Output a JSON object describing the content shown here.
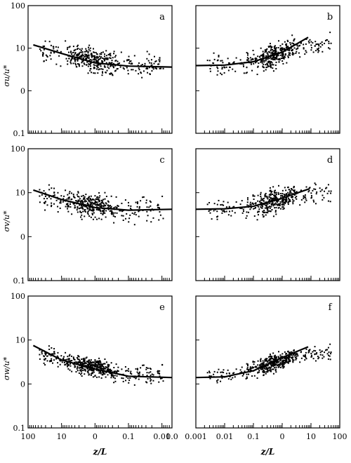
{
  "chart_data": [
    {
      "panel": "a",
      "type": "scatter",
      "ylabel": "σu/u*",
      "xlabel": "",
      "x_axis": "decreasing-log",
      "xlim": [
        100,
        0.005
      ],
      "ylim_display": [
        "100",
        "10",
        "0",
        "0.1"
      ],
      "fit_line": [
        [
          70,
          12
        ],
        [
          10,
          7.5
        ],
        [
          1,
          4.5
        ],
        [
          0.1,
          3.8
        ],
        [
          0.005,
          3.6
        ]
      ],
      "scatter_center": [
        [
          30,
          9
        ],
        [
          5,
          6.5
        ],
        [
          1,
          5
        ],
        [
          0.2,
          4.2
        ],
        [
          0.02,
          4
        ]
      ],
      "scatter_spread": 0.55,
      "n_points": 420
    },
    {
      "panel": "b",
      "type": "scatter",
      "ylabel": "",
      "xlabel": "",
      "x_axis": "increasing-log",
      "xlim": [
        0.001,
        100
      ],
      "ylim_display": [],
      "fit_line": [
        [
          0.001,
          3.9
        ],
        [
          0.01,
          4.0
        ],
        [
          0.1,
          4.8
        ],
        [
          1,
          8
        ],
        [
          8,
          18
        ]
      ],
      "scatter_center": [
        [
          0.002,
          4
        ],
        [
          0.02,
          4.3
        ],
        [
          0.1,
          5
        ],
        [
          0.5,
          6.5
        ],
        [
          5,
          12
        ]
      ],
      "scatter_spread": 0.5,
      "n_points": 420
    },
    {
      "panel": "c",
      "type": "scatter",
      "ylabel": "σv/u*",
      "xlabel": "",
      "x_axis": "decreasing-log",
      "xlim": [
        100,
        0.005
      ],
      "ylim_display": [
        "100",
        "10",
        "0",
        "0.1"
      ],
      "fit_line": [
        [
          70,
          11.5
        ],
        [
          10,
          7
        ],
        [
          1,
          4.6
        ],
        [
          0.1,
          4
        ],
        [
          0.005,
          4.2
        ]
      ],
      "scatter_center": [
        [
          30,
          8
        ],
        [
          5,
          6
        ],
        [
          1,
          5
        ],
        [
          0.2,
          4.4
        ],
        [
          0.02,
          4
        ]
      ],
      "scatter_spread": 0.55,
      "n_points": 420
    },
    {
      "panel": "d",
      "type": "scatter",
      "ylabel": "",
      "xlabel": "",
      "x_axis": "increasing-log",
      "xlim": [
        0.001,
        100
      ],
      "ylim_display": [],
      "fit_line": [
        [
          0.001,
          4.2
        ],
        [
          0.01,
          4.3
        ],
        [
          0.1,
          4.9
        ],
        [
          1,
          7.5
        ],
        [
          8,
          12
        ]
      ],
      "scatter_center": [
        [
          0.002,
          4.2
        ],
        [
          0.02,
          4.5
        ],
        [
          0.1,
          5
        ],
        [
          0.5,
          6.5
        ],
        [
          5,
          10
        ]
      ],
      "scatter_spread": 0.5,
      "n_points": 420
    },
    {
      "panel": "e",
      "type": "scatter",
      "ylabel": "σw/u*",
      "xlabel": "z/L",
      "x_axis": "decreasing-log",
      "xlim": [
        100,
        0.005
      ],
      "ylim_display": [
        "100",
        "10",
        "0",
        "0.1"
      ],
      "x_tick_labels": [
        "100",
        "10",
        "0",
        "0.1",
        "0.01",
        "0.0"
      ],
      "fit_line": [
        [
          70,
          7.5
        ],
        [
          10,
          3.5
        ],
        [
          1,
          2.2
        ],
        [
          0.1,
          1.5
        ],
        [
          0.005,
          1.4
        ]
      ],
      "scatter_center": [
        [
          20,
          4.5
        ],
        [
          5,
          3
        ],
        [
          1,
          2.4
        ],
        [
          0.2,
          1.8
        ],
        [
          0.02,
          1.6
        ]
      ],
      "scatter_spread": 0.4,
      "n_points": 520
    },
    {
      "panel": "f",
      "type": "scatter",
      "ylabel": "",
      "xlabel": "z/L",
      "x_axis": "increasing-log",
      "xlim": [
        0.001,
        100
      ],
      "ylim_display": [],
      "x_tick_labels": [
        "0.001",
        "0.01",
        "0.1",
        "0",
        "10",
        "100"
      ],
      "fit_line": [
        [
          0.001,
          1.4
        ],
        [
          0.01,
          1.45
        ],
        [
          0.1,
          2.0
        ],
        [
          1,
          4
        ],
        [
          8,
          7
        ]
      ],
      "scatter_center": [
        [
          0.002,
          1.5
        ],
        [
          0.02,
          1.7
        ],
        [
          0.1,
          2.2
        ],
        [
          0.5,
          3
        ],
        [
          5,
          5
        ]
      ],
      "scatter_spread": 0.35,
      "n_points": 480
    }
  ]
}
